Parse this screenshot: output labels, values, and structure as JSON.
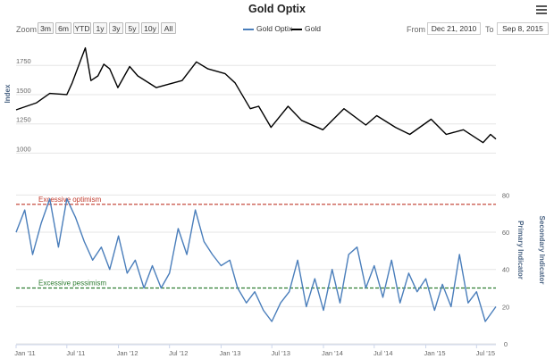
{
  "title": "Gold Optix",
  "zoom": {
    "label": "Zoom",
    "buttons": [
      "3m",
      "6m",
      "YTD",
      "1y",
      "3y",
      "5y",
      "10y",
      "All"
    ]
  },
  "legend": {
    "items": [
      {
        "name": "Gold Optix",
        "color": "#4a7ebb"
      },
      {
        "name": "Gold",
        "color": "#000000"
      }
    ]
  },
  "range": {
    "from_label": "From",
    "from_value": "Dec 21, 2010",
    "to_label": "To",
    "to_value": "Sep 8, 2015"
  },
  "colors": {
    "gold_line": "#000000",
    "optix_line": "#4a7ebb",
    "optimism_line": "#c0392b",
    "pessimism_line": "#2e7d32",
    "grid": "#e6e6e6"
  },
  "chart_data": [
    {
      "type": "line",
      "panel": "top",
      "ylabel": "Index",
      "yticks": [
        1000,
        1250,
        1500,
        1750
      ],
      "ylim": [
        950,
        1950
      ],
      "x": [
        "2011-01-01",
        "2011-03-15",
        "2011-05-01",
        "2011-07-01",
        "2011-07-20",
        "2011-08-20",
        "2011-09-05",
        "2011-09-25",
        "2011-10-20",
        "2011-11-10",
        "2011-12-01",
        "2011-12-30",
        "2012-02-10",
        "2012-03-10",
        "2012-05-15",
        "2012-08-15",
        "2012-10-05",
        "2012-11-15",
        "2013-01-15",
        "2013-02-20",
        "2013-04-15",
        "2013-05-15",
        "2013-06-28",
        "2013-08-28",
        "2013-10-15",
        "2013-12-30",
        "2014-03-15",
        "2014-06-01",
        "2014-07-10",
        "2014-09-15",
        "2014-11-05",
        "2015-01-20",
        "2015-03-15",
        "2015-05-15",
        "2015-07-24",
        "2015-08-20",
        "2015-09-08"
      ],
      "series": [
        {
          "name": "Gold",
          "values": [
            1370,
            1430,
            1510,
            1500,
            1600,
            1800,
            1900,
            1620,
            1660,
            1760,
            1720,
            1560,
            1740,
            1660,
            1560,
            1620,
            1780,
            1720,
            1680,
            1600,
            1380,
            1400,
            1220,
            1400,
            1280,
            1200,
            1380,
            1240,
            1320,
            1220,
            1160,
            1290,
            1160,
            1200,
            1090,
            1160,
            1120
          ]
        }
      ]
    },
    {
      "type": "line",
      "panel": "bottom",
      "ylabel": "Primary Indicator",
      "y2label": "Secondary Indicator",
      "yticks": [
        0,
        20,
        40,
        60,
        80
      ],
      "ylim": [
        0,
        85
      ],
      "x": [
        "2011-01-01",
        "2011-02-01",
        "2011-03-01",
        "2011-04-01",
        "2011-05-01",
        "2011-06-01",
        "2011-07-01",
        "2011-08-01",
        "2011-09-01",
        "2011-10-01",
        "2011-11-01",
        "2011-12-01",
        "2012-01-01",
        "2012-02-01",
        "2012-03-01",
        "2012-04-01",
        "2012-05-01",
        "2012-06-01",
        "2012-07-01",
        "2012-08-01",
        "2012-09-01",
        "2012-10-01",
        "2012-11-01",
        "2012-12-01",
        "2013-01-01",
        "2013-02-01",
        "2013-03-01",
        "2013-04-01",
        "2013-05-01",
        "2013-06-01",
        "2013-07-01",
        "2013-08-01",
        "2013-09-01",
        "2013-10-01",
        "2013-11-01",
        "2013-12-01",
        "2014-01-01",
        "2014-02-01",
        "2014-03-01",
        "2014-04-01",
        "2014-05-01",
        "2014-06-01",
        "2014-07-01",
        "2014-08-01",
        "2014-09-01",
        "2014-10-01",
        "2014-11-01",
        "2014-12-01",
        "2015-01-01",
        "2015-02-01",
        "2015-03-01",
        "2015-04-01",
        "2015-05-01",
        "2015-06-01",
        "2015-07-01",
        "2015-08-01",
        "2015-09-08"
      ],
      "series": [
        {
          "name": "Gold Optix",
          "values": [
            60,
            72,
            48,
            65,
            78,
            52,
            78,
            68,
            55,
            45,
            52,
            40,
            58,
            38,
            45,
            30,
            42,
            30,
            38,
            62,
            48,
            72,
            55,
            48,
            42,
            45,
            30,
            22,
            28,
            18,
            12,
            22,
            28,
            45,
            20,
            35,
            18,
            40,
            22,
            48,
            52,
            30,
            42,
            25,
            45,
            22,
            38,
            28,
            35,
            18,
            32,
            20,
            48,
            22,
            28,
            12,
            20
          ]
        }
      ],
      "thresholds": [
        {
          "label": "Excessive optimism",
          "value": 75
        },
        {
          "label": "Excessive pessimism",
          "value": 30
        }
      ]
    }
  ],
  "x_axis": {
    "ticks": [
      "Jan '11",
      "Jul '11",
      "Jan '12",
      "Jul '12",
      "Jan '13",
      "Jul '13",
      "Jan '14",
      "Jul '14",
      "Jan '15",
      "Jul '15"
    ]
  }
}
